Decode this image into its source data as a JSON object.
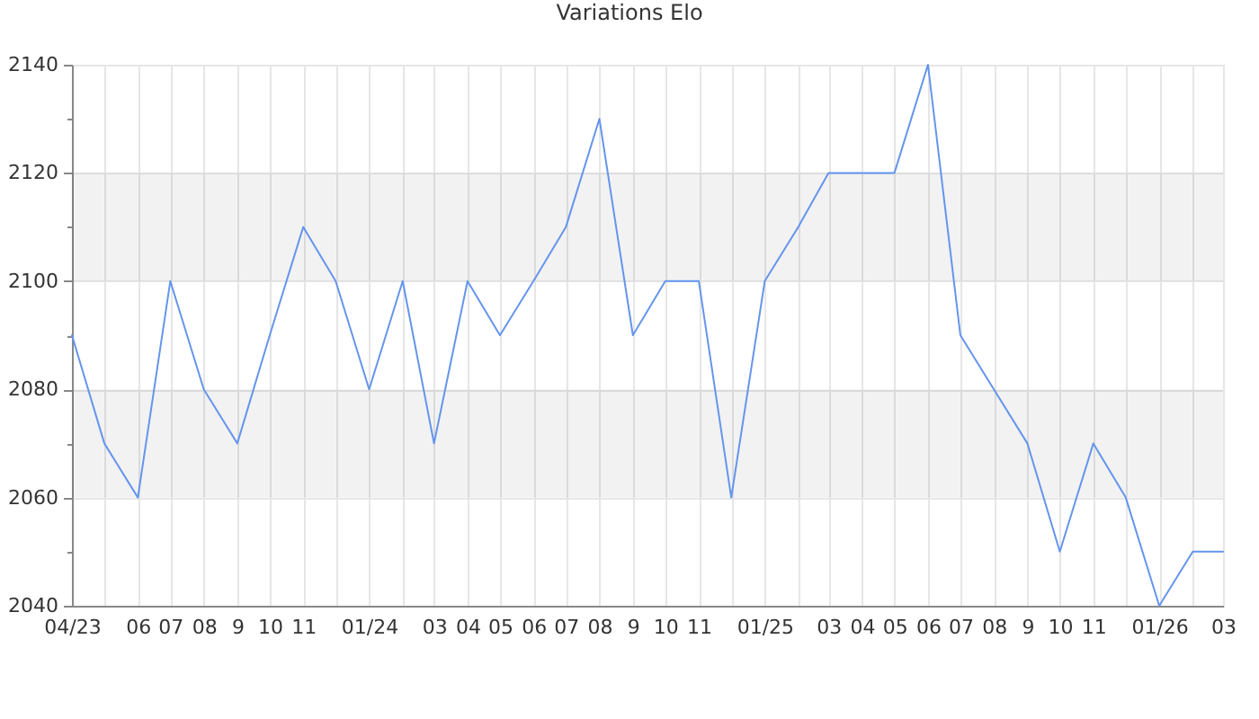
{
  "chart_data": {
    "type": "line",
    "title": "Variations Elo",
    "x": [
      "2023-04",
      "2023-05",
      "2023-06",
      "2023-07",
      "2023-08",
      "2023-09",
      "2023-10",
      "2023-11",
      "2023-12",
      "2024-01",
      "2024-02",
      "2024-03",
      "2024-04",
      "2024-05",
      "2024-06",
      "2024-07",
      "2024-08",
      "2024-09",
      "2024-10",
      "2024-11",
      "2024-12",
      "2025-01",
      "2025-02",
      "2025-03",
      "2025-04",
      "2025-05",
      "2025-06",
      "2025-07",
      "2025-08",
      "2025-09",
      "2025-10",
      "2025-11",
      "2025-12",
      "2026-01",
      "2026-02",
      "2026-03"
    ],
    "series": [
      {
        "color": "#6495ed",
        "values": [
          2090,
          2070,
          2060,
          2100,
          2080,
          2070,
          2090,
          2110,
          2100,
          2080,
          2100,
          2070,
          2100,
          2090,
          2100,
          2110,
          2130,
          2090,
          2100,
          2100,
          2060,
          2100,
          2110,
          2120,
          2120,
          2120,
          2140,
          2090,
          2080,
          2070,
          2050,
          2070,
          2060,
          2040,
          2050,
          2050
        ]
      }
    ],
    "xlim": [
      "2023-04",
      "2026-03"
    ],
    "xticks": [
      {
        "value": "2023-04",
        "label": "04/23"
      },
      {
        "value": "2023-05",
        "label": null
      },
      {
        "value": "2023-06",
        "label": "06"
      },
      {
        "value": "2023-07",
        "label": "07"
      },
      {
        "value": "2023-08",
        "label": "08"
      },
      {
        "value": "2023-09",
        "label": "9"
      },
      {
        "value": "2023-10",
        "label": "10"
      },
      {
        "value": "2023-11",
        "label": "11"
      },
      {
        "value": "2023-12",
        "label": null
      },
      {
        "value": "2024-01",
        "label": "01/24"
      },
      {
        "value": "2024-02",
        "label": null
      },
      {
        "value": "2024-03",
        "label": "03"
      },
      {
        "value": "2024-04",
        "label": "04"
      },
      {
        "value": "2024-05",
        "label": "05"
      },
      {
        "value": "2024-06",
        "label": "06"
      },
      {
        "value": "2024-07",
        "label": "07"
      },
      {
        "value": "2024-08",
        "label": "08"
      },
      {
        "value": "2024-09",
        "label": "9"
      },
      {
        "value": "2024-10",
        "label": "10"
      },
      {
        "value": "2024-11",
        "label": "11"
      },
      {
        "value": "2024-12",
        "label": null
      },
      {
        "value": "2025-01",
        "label": "01/25"
      },
      {
        "value": "2025-02",
        "label": null
      },
      {
        "value": "2025-03",
        "label": "03"
      },
      {
        "value": "2025-04",
        "label": "04"
      },
      {
        "value": "2025-05",
        "label": "05"
      },
      {
        "value": "2025-06",
        "label": "06"
      },
      {
        "value": "2025-07",
        "label": "07"
      },
      {
        "value": "2025-08",
        "label": "08"
      },
      {
        "value": "2025-09",
        "label": "9"
      },
      {
        "value": "2025-10",
        "label": "10"
      },
      {
        "value": "2025-11",
        "label": "11"
      },
      {
        "value": "2025-12",
        "label": null
      },
      {
        "value": "2026-01",
        "label": "01/26"
      },
      {
        "value": "2026-02",
        "label": null
      },
      {
        "value": "2026-03",
        "label": "03"
      }
    ],
    "ylim": [
      2040,
      2140
    ],
    "yticks": [
      2040,
      {
        "value": 2050,
        "label": null
      },
      2060,
      {
        "value": 2070,
        "label": null
      },
      2080,
      {
        "value": 2090,
        "label": null
      },
      2100,
      {
        "value": 2110,
        "label": null
      },
      2120,
      {
        "value": 2130,
        "label": null
      },
      2140
    ],
    "grid": true,
    "bands": [
      {
        "axis": "y",
        "from": 2060,
        "to": 2080,
        "color": "#f2f2f2"
      },
      {
        "axis": "y",
        "from": 2100,
        "to": 2120,
        "color": "#f2f2f2"
      }
    ],
    "line_style": "solid"
  }
}
